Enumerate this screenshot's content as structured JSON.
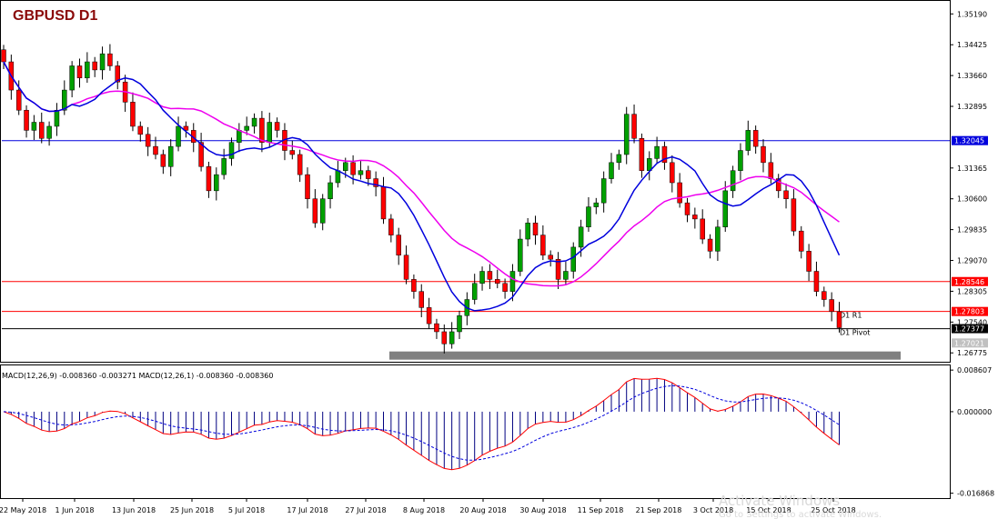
{
  "window": {
    "title": "GBPUSD D1"
  },
  "colors": {
    "bull": "#00a000",
    "bear": "#ff0000",
    "ma_fast": "#0000dd",
    "ma_slow": "#ee00ee",
    "title": "#8b0a0a",
    "price_label_red": "#ff0000",
    "price_label_blue": "#0000dd",
    "support_zone": "#808080"
  },
  "watermark": {
    "line1": "Activate Windows",
    "line2": "Go to Settings to activate Windows."
  },
  "chart_data": {
    "type": "candlestick",
    "symbol": "GBPUSD",
    "timeframe": "D1",
    "ylim": [
      1.266,
      1.354
    ],
    "y_ticks": [
      "1.35190",
      "1.34425",
      "1.33660",
      "1.32895",
      "1.32045",
      "1.31365",
      "1.30600",
      "1.29835",
      "1.29070",
      "1.28546",
      "1.28305",
      "1.27803",
      "1.27540",
      "1.27377",
      "1.27021",
      "1.26775"
    ],
    "x_ticks": [
      "22 May 2018",
      "1 Jun 2018",
      "13 Jun 2018",
      "25 Jun 2018",
      "5 Jul 2018",
      "17 Jul 2018",
      "27 Jul 2018",
      "8 Aug 2018",
      "20 Aug 2018",
      "30 Aug 2018",
      "11 Sep 2018",
      "21 Sep 2018",
      "3 Oct 2018",
      "15 Oct 2018",
      "25 Oct 2018"
    ],
    "closes": [
      1.34,
      1.333,
      1.328,
      1.323,
      1.325,
      1.321,
      1.324,
      1.328,
      1.333,
      1.339,
      1.336,
      1.34,
      1.338,
      1.342,
      1.339,
      1.335,
      1.33,
      1.324,
      1.322,
      1.319,
      1.317,
      1.314,
      1.319,
      1.324,
      1.323,
      1.32,
      1.314,
      1.308,
      1.312,
      1.316,
      1.32,
      1.323,
      1.324,
      1.326,
      1.32,
      1.325,
      1.323,
      1.318,
      1.317,
      1.312,
      1.306,
      1.3,
      1.306,
      1.31,
      1.313,
      1.315,
      1.312,
      1.313,
      1.311,
      1.309,
      1.301,
      1.297,
      1.292,
      1.286,
      1.283,
      1.279,
      1.275,
      1.273,
      1.27,
      1.273,
      1.277,
      1.281,
      1.285,
      1.288,
      1.286,
      1.285,
      1.283,
      1.288,
      1.296,
      1.3,
      1.297,
      1.292,
      1.291,
      1.286,
      1.288,
      1.294,
      1.299,
      1.304,
      1.305,
      1.311,
      1.315,
      1.317,
      1.327,
      1.321,
      1.313,
      1.316,
      1.319,
      1.315,
      1.31,
      1.305,
      1.302,
      1.301,
      1.296,
      1.293,
      1.299,
      1.308,
      1.313,
      1.318,
      1.323,
      1.319,
      1.315,
      1.311,
      1.308,
      1.306,
      1.298,
      1.293,
      1.288,
      1.283,
      1.281,
      1.278,
      1.274
    ],
    "ma_fast_period": 10,
    "ma_slow_period": 20,
    "horizontal_levels": [
      {
        "price": 1.32045,
        "label": "1.32045",
        "color": "#0000dd"
      },
      {
        "price": 1.28546,
        "label": "1.28546",
        "color": "#ff0000"
      },
      {
        "price": 1.27803,
        "label": "1.27803",
        "color": "#ff0000",
        "tag": "D1 R1"
      },
      {
        "price": 1.27377,
        "label": "1.27377",
        "color": "#000000",
        "tag": "D1 Pivot"
      }
    ],
    "bid_label": "1.27021",
    "ask_label": "1.27540",
    "support_zone": {
      "price": 1.2672
    },
    "macd": {
      "header": "MACD(12,26,9) -0.008360 -0.003271 MACD(12,26,1) -0.008360 -0.008360",
      "ylim": [
        -0.0175,
        0.0092
      ],
      "y_ticks": [
        "0.008607",
        "0.000000",
        "-0.016868"
      ]
    }
  }
}
